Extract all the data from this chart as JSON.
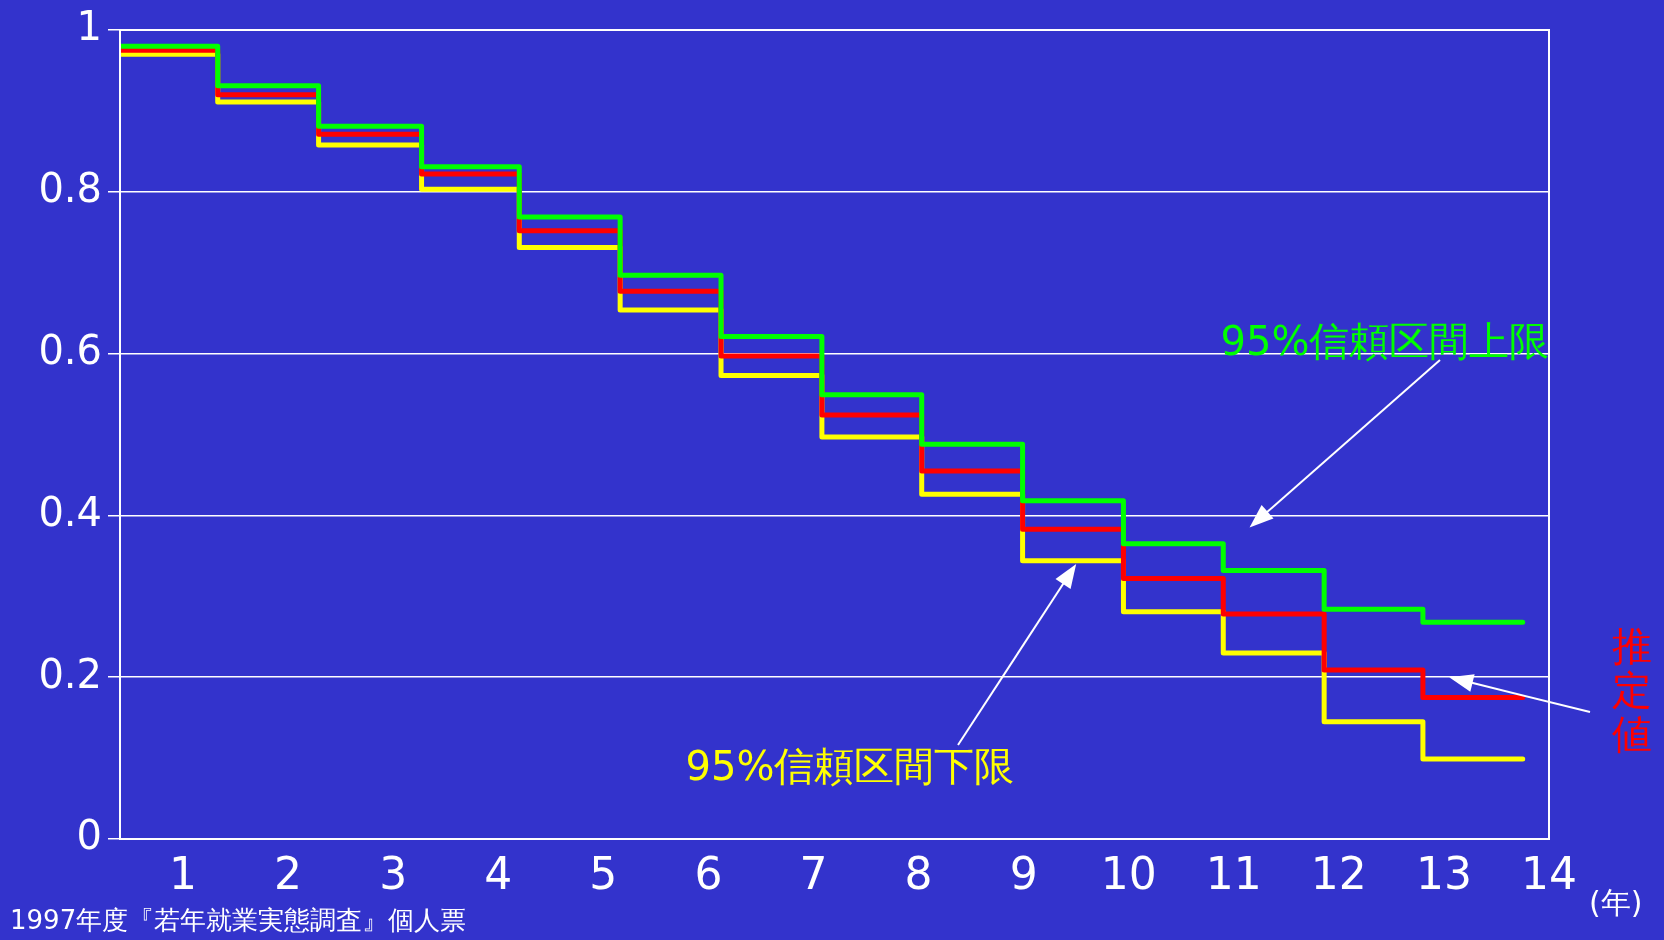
{
  "chart_data": {
    "type": "step",
    "xlabel": "(年)",
    "xlim": [
      0.4,
      14
    ],
    "xticks": [
      1,
      2,
      3,
      4,
      5,
      6,
      7,
      8,
      9,
      10,
      11,
      12,
      13,
      14
    ],
    "ylim": [
      0,
      1
    ],
    "yticks": [
      0,
      0.2,
      0.4,
      0.6,
      0.8,
      1
    ],
    "grid": "y",
    "legend": false,
    "marker": "none",
    "line_style": "solid",
    "x": [
      0.4,
      1.33,
      2.29,
      3.27,
      4.2,
      5.16,
      6.12,
      7.08,
      8.03,
      8.99,
      9.95,
      10.9,
      11.86,
      12.8,
      13.75
    ],
    "series": [
      {
        "name": "95%信頼区間上限",
        "color": "#00ff00",
        "values": [
          0.98,
          0.931,
          0.881,
          0.831,
          0.769,
          0.697,
          0.621,
          0.549,
          0.488,
          0.418,
          0.365,
          0.332,
          0.284,
          0.268,
          0.268
        ]
      },
      {
        "name": "推定値",
        "color": "#ff0000",
        "values": [
          0.975,
          0.92,
          0.871,
          0.822,
          0.752,
          0.677,
          0.597,
          0.524,
          0.455,
          0.383,
          0.322,
          0.278,
          0.209,
          0.175,
          0.175
        ]
      },
      {
        "name": "95%信頼区間下限",
        "color": "#ffff00",
        "values": [
          0.97,
          0.911,
          0.858,
          0.803,
          0.731,
          0.654,
          0.573,
          0.497,
          0.426,
          0.344,
          0.281,
          0.23,
          0.145,
          0.099,
          0.099
        ]
      }
    ],
    "annotations": [
      "1997年度『若年就業実態調査』個人票"
    ]
  }
}
